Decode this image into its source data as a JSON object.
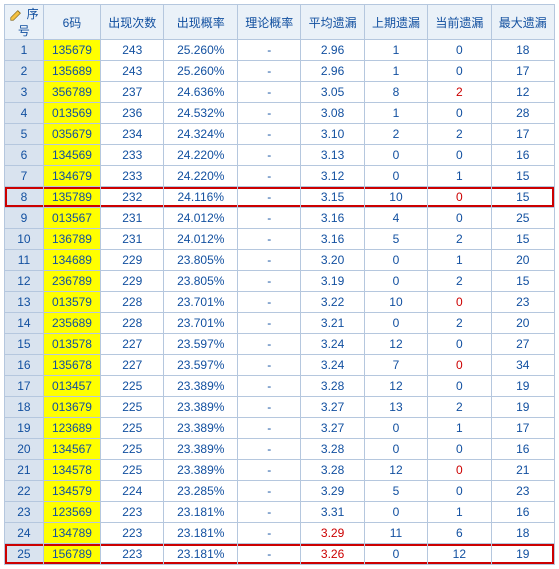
{
  "colors": {
    "border": "#b5c7de",
    "header_bg": "#eaf1f8",
    "header_fg": "#1250a0",
    "seq_bg": "#d9e3ef",
    "code_bg": "#ffff00",
    "text": "#1250a0",
    "red": "#cc0000",
    "highlight_border": "#cc0000"
  },
  "columns": [
    {
      "key": "seq",
      "label": "序号"
    },
    {
      "key": "code",
      "label": "6码"
    },
    {
      "key": "count",
      "label": "出现次数"
    },
    {
      "key": "prob",
      "label": "出现概率"
    },
    {
      "key": "theo",
      "label": "理论概率"
    },
    {
      "key": "avg",
      "label": "平均遗漏"
    },
    {
      "key": "last",
      "label": "上期遗漏"
    },
    {
      "key": "cur",
      "label": "当前遗漏"
    },
    {
      "key": "max",
      "label": "最大遗漏"
    }
  ],
  "highlight_rows": [
    8,
    25
  ],
  "rows": [
    {
      "seq": 1,
      "code": "135679",
      "count": 243,
      "prob": "25.260%",
      "theo": "-",
      "avg": "2.96",
      "last": 1,
      "cur": 0,
      "max": 18
    },
    {
      "seq": 2,
      "code": "135689",
      "count": 243,
      "prob": "25.260%",
      "theo": "-",
      "avg": "2.96",
      "last": 1,
      "cur": 0,
      "max": 17
    },
    {
      "seq": 3,
      "code": "356789",
      "count": 237,
      "prob": "24.636%",
      "theo": "-",
      "avg": "3.05",
      "last": 8,
      "cur": 2,
      "cur_red": true,
      "max": 12
    },
    {
      "seq": 4,
      "code": "013569",
      "count": 236,
      "prob": "24.532%",
      "theo": "-",
      "avg": "3.08",
      "last": 1,
      "cur": 0,
      "max": 28
    },
    {
      "seq": 5,
      "code": "035679",
      "count": 234,
      "prob": "24.324%",
      "theo": "-",
      "avg": "3.10",
      "last": 2,
      "cur": 2,
      "max": 17
    },
    {
      "seq": 6,
      "code": "134569",
      "count": 233,
      "prob": "24.220%",
      "theo": "-",
      "avg": "3.13",
      "last": 0,
      "cur": 0,
      "max": 16
    },
    {
      "seq": 7,
      "code": "134679",
      "count": 233,
      "prob": "24.220%",
      "theo": "-",
      "avg": "3.12",
      "last": 0,
      "cur": 1,
      "max": 15
    },
    {
      "seq": 8,
      "code": "135789",
      "count": 232,
      "prob": "24.116%",
      "theo": "-",
      "avg": "3.15",
      "last": 10,
      "cur": 0,
      "cur_red": true,
      "max": 15
    },
    {
      "seq": 9,
      "code": "013567",
      "count": 231,
      "prob": "24.012%",
      "theo": "-",
      "avg": "3.16",
      "last": 4,
      "cur": 0,
      "max": 25
    },
    {
      "seq": 10,
      "code": "136789",
      "count": 231,
      "prob": "24.012%",
      "theo": "-",
      "avg": "3.16",
      "last": 5,
      "cur": 2,
      "max": 15
    },
    {
      "seq": 11,
      "code": "134689",
      "count": 229,
      "prob": "23.805%",
      "theo": "-",
      "avg": "3.20",
      "last": 0,
      "cur": 1,
      "max": 20
    },
    {
      "seq": 12,
      "code": "236789",
      "count": 229,
      "prob": "23.805%",
      "theo": "-",
      "avg": "3.19",
      "last": 0,
      "cur": 2,
      "max": 15
    },
    {
      "seq": 13,
      "code": "013579",
      "count": 228,
      "prob": "23.701%",
      "theo": "-",
      "avg": "3.22",
      "last": 10,
      "cur": 0,
      "cur_red": true,
      "max": 23
    },
    {
      "seq": 14,
      "code": "235689",
      "count": 228,
      "prob": "23.701%",
      "theo": "-",
      "avg": "3.21",
      "last": 0,
      "cur": 2,
      "max": 20
    },
    {
      "seq": 15,
      "code": "013578",
      "count": 227,
      "prob": "23.597%",
      "theo": "-",
      "avg": "3.24",
      "last": 12,
      "cur": 0,
      "max": 27
    },
    {
      "seq": 16,
      "code": "135678",
      "count": 227,
      "prob": "23.597%",
      "theo": "-",
      "avg": "3.24",
      "last": 7,
      "cur": 0,
      "cur_red": true,
      "max": 34
    },
    {
      "seq": 17,
      "code": "013457",
      "count": 225,
      "prob": "23.389%",
      "theo": "-",
      "avg": "3.28",
      "last": 12,
      "cur": 0,
      "max": 19
    },
    {
      "seq": 18,
      "code": "013679",
      "count": 225,
      "prob": "23.389%",
      "theo": "-",
      "avg": "3.27",
      "last": 13,
      "cur": 2,
      "max": 19
    },
    {
      "seq": 19,
      "code": "123689",
      "count": 225,
      "prob": "23.389%",
      "theo": "-",
      "avg": "3.27",
      "last": 0,
      "cur": 1,
      "max": 17
    },
    {
      "seq": 20,
      "code": "134567",
      "count": 225,
      "prob": "23.389%",
      "theo": "-",
      "avg": "3.28",
      "last": 0,
      "cur": 0,
      "max": 16
    },
    {
      "seq": 21,
      "code": "134578",
      "count": 225,
      "prob": "23.389%",
      "theo": "-",
      "avg": "3.28",
      "last": 12,
      "cur": 0,
      "cur_red": true,
      "max": 21
    },
    {
      "seq": 22,
      "code": "134579",
      "count": 224,
      "prob": "23.285%",
      "theo": "-",
      "avg": "3.29",
      "last": 5,
      "cur": 0,
      "max": 23
    },
    {
      "seq": 23,
      "code": "123569",
      "count": 223,
      "prob": "23.181%",
      "theo": "-",
      "avg": "3.31",
      "last": 0,
      "cur": 1,
      "max": 16
    },
    {
      "seq": 24,
      "code": "134789",
      "count": 223,
      "prob": "23.181%",
      "theo": "-",
      "avg": "3.29",
      "avg_red": true,
      "last": 11,
      "cur": 6,
      "max": 18
    },
    {
      "seq": 25,
      "code": "156789",
      "count": 223,
      "prob": "23.181%",
      "theo": "-",
      "avg": "3.26",
      "avg_red": true,
      "last": 0,
      "cur": 12,
      "max": 19
    }
  ]
}
